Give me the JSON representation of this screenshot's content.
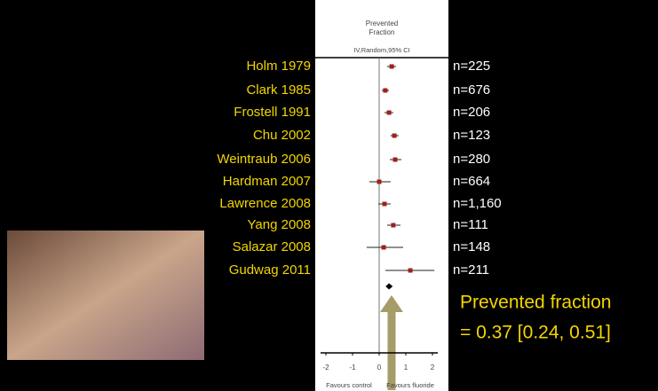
{
  "chart_data": {
    "type": "forest",
    "header": "Prevented Fraction",
    "subheader": "IV,Random,95% CI",
    "xlim": [
      -2.2,
      2.2
    ],
    "xticks": [
      -2,
      -1,
      0,
      1,
      2
    ],
    "left_label": "Favours control",
    "right_label": "Favours fluoride",
    "studies": [
      {
        "name": "Holm 1979",
        "n": "n=225",
        "value": 0.47,
        "lower": 0.3,
        "upper": 0.63
      },
      {
        "name": "Clark 1985",
        "n": "n=676",
        "value": 0.23,
        "lower": 0.1,
        "upper": 0.37
      },
      {
        "name": "Frostell 1991",
        "n": "n=206",
        "value": 0.37,
        "lower": 0.2,
        "upper": 0.53
      },
      {
        "name": "Chu 2002",
        "n": "n=123",
        "value": 0.57,
        "lower": 0.43,
        "upper": 0.73
      },
      {
        "name": "Weintraub 2006",
        "n": "n=280",
        "value": 0.6,
        "lower": 0.4,
        "upper": 0.83
      },
      {
        "name": "Hardman 2007",
        "n": "n=664",
        "value": 0.0,
        "lower": -0.37,
        "upper": 0.43
      },
      {
        "name": "Lawrence 2008",
        "n": "n=1,160",
        "value": 0.2,
        "lower": -0.03,
        "upper": 0.43
      },
      {
        "name": "Yang 2008",
        "n": "n=111",
        "value": 0.53,
        "lower": 0.3,
        "upper": 0.8
      },
      {
        "name": "Salazar 2008",
        "n": "n=148",
        "value": 0.17,
        "lower": -0.47,
        "upper": 0.9
      },
      {
        "name": "Gudwag 2011",
        "n": "n=211",
        "value": 1.17,
        "lower": 0.23,
        "upper": 2.07
      }
    ],
    "pooled": {
      "value": 0.37,
      "lower": 0.24,
      "upper": 0.51,
      "label": "= 0.37 [0.24, 0.51]"
    },
    "summary_title": "Prevented fraction",
    "marker_color": "#a0201c"
  }
}
